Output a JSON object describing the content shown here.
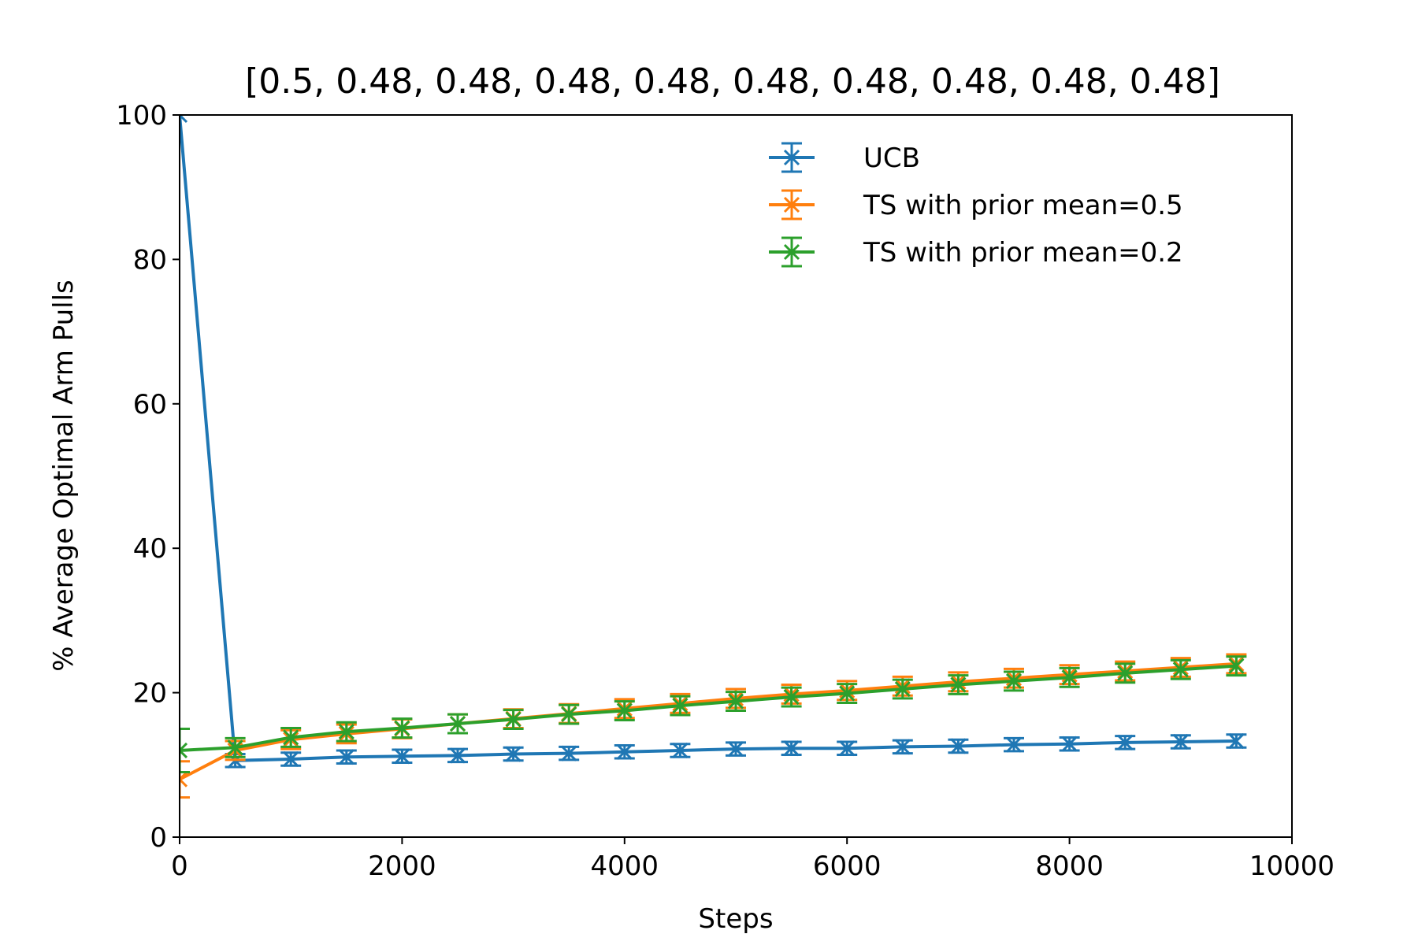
{
  "chart_data": {
    "type": "line",
    "title": "[0.5, 0.48, 0.48, 0.48, 0.48, 0.48, 0.48, 0.48, 0.48, 0.48]",
    "xlabel": "Steps",
    "ylabel": "% Average Optimal Arm Pulls",
    "xlim": [
      0,
      10000
    ],
    "ylim": [
      0,
      100
    ],
    "xticks": [
      "0",
      "2000",
      "4000",
      "6000",
      "8000",
      "10000"
    ],
    "yticks": [
      "0",
      "20",
      "40",
      "60",
      "80",
      "100"
    ],
    "grid": false,
    "legend_position": "top-right",
    "x": [
      0,
      500,
      1000,
      1500,
      2000,
      2500,
      3000,
      3500,
      4000,
      4500,
      5000,
      5500,
      6000,
      6500,
      7000,
      7500,
      8000,
      8500,
      9000,
      9500
    ],
    "series": [
      {
        "name": "UCB",
        "color": "#1f77b4",
        "values": [
          100,
          10.6,
          10.8,
          11.1,
          11.2,
          11.3,
          11.5,
          11.6,
          11.8,
          12.0,
          12.2,
          12.3,
          12.3,
          12.5,
          12.6,
          12.8,
          12.9,
          13.1,
          13.2,
          13.3
        ],
        "errors": [
          0,
          0.9,
          0.9,
          0.9,
          0.9,
          0.9,
          0.9,
          0.9,
          0.9,
          0.9,
          0.9,
          0.9,
          0.9,
          0.9,
          0.9,
          0.9,
          0.9,
          0.9,
          0.9,
          0.9
        ]
      },
      {
        "name": "TS with prior mean=0.5",
        "color": "#ff7f0e",
        "values": [
          8.0,
          12.0,
          13.5,
          14.3,
          15.0,
          15.7,
          16.4,
          17.1,
          17.8,
          18.5,
          19.2,
          19.8,
          20.3,
          20.9,
          21.5,
          22.0,
          22.5,
          23.0,
          23.5,
          24.0
        ],
        "errors": [
          2.5,
          1.3,
          1.3,
          1.3,
          1.3,
          1.3,
          1.3,
          1.3,
          1.3,
          1.3,
          1.3,
          1.3,
          1.3,
          1.3,
          1.3,
          1.3,
          1.3,
          1.3,
          1.3,
          1.3
        ]
      },
      {
        "name": "TS with prior mean=0.2",
        "color": "#2ca02c",
        "values": [
          12.0,
          12.4,
          13.8,
          14.6,
          15.1,
          15.7,
          16.3,
          17.0,
          17.5,
          18.2,
          18.8,
          19.4,
          19.9,
          20.5,
          21.1,
          21.6,
          22.1,
          22.7,
          23.2,
          23.7
        ],
        "errors": [
          3.0,
          1.3,
          1.3,
          1.3,
          1.3,
          1.3,
          1.3,
          1.3,
          1.3,
          1.3,
          1.3,
          1.3,
          1.3,
          1.3,
          1.3,
          1.3,
          1.3,
          1.3,
          1.3,
          1.3
        ]
      }
    ]
  }
}
